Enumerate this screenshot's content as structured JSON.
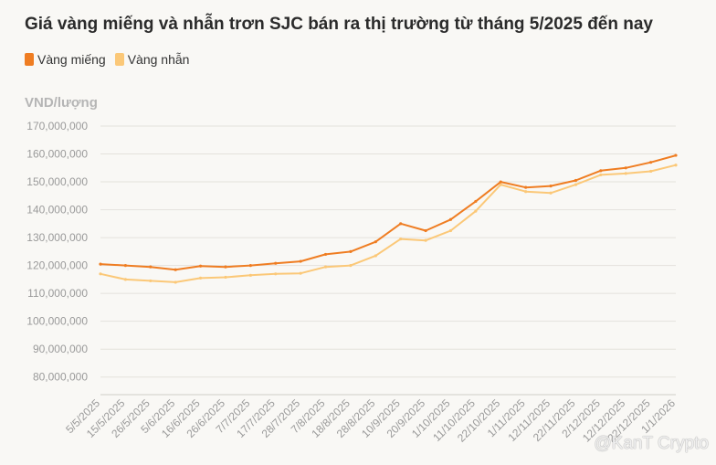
{
  "chart_data": {
    "type": "line",
    "title": "Giá vàng miếng và nhẫn trơn SJC bán ra thị trường từ tháng 5/2025 đến nay",
    "ylabel": "VND/lượng",
    "xlabel": "",
    "ylim": [
      75000000,
      170000000
    ],
    "yticks": [
      80000000,
      90000000,
      100000000,
      110000000,
      120000000,
      130000000,
      140000000,
      150000000,
      160000000,
      170000000
    ],
    "ytick_labels": [
      "80,000,000",
      "90,000,000",
      "100,000,000",
      "110,000,000",
      "120,000,000",
      "130,000,000",
      "140,000,000",
      "150,000,000",
      "160,000,000",
      "170,000,000"
    ],
    "categories": [
      "5/5/2025",
      "15/5/2025",
      "26/5/2025",
      "5/6/2025",
      "16/6/2025",
      "26/6/2025",
      "7/7/2025",
      "17/7/2025",
      "28/7/2025",
      "7/8/2025",
      "18/8/2025",
      "28/8/2025",
      "10/9/2025",
      "20/9/2025",
      "1/10/2025",
      "11/10/2025",
      "22/10/2025",
      "1/11/2025",
      "12/11/2025",
      "22/11/2025",
      "2/12/2025",
      "12/12/2025",
      "22/12/2025",
      "1/1/2026"
    ],
    "series": [
      {
        "name": "Vàng miếng",
        "color": "#ef7d22",
        "values": [
          120500000,
          120000000,
          119500000,
          118500000,
          119800000,
          119500000,
          120000000,
          120800000,
          121500000,
          124000000,
          125000000,
          128500000,
          135000000,
          132500000,
          136500000,
          143000000,
          150000000,
          148000000,
          148500000,
          150500000,
          154000000,
          155000000,
          157000000,
          159500000
        ]
      },
      {
        "name": "Vàng nhẫn",
        "color": "#fbc878",
        "values": [
          117000000,
          115000000,
          114500000,
          114000000,
          115500000,
          115800000,
          116500000,
          117000000,
          117200000,
          119500000,
          120000000,
          123500000,
          129500000,
          129000000,
          132500000,
          139500000,
          149000000,
          146500000,
          146000000,
          149000000,
          152500000,
          153000000,
          153800000,
          156000000
        ]
      }
    ]
  },
  "legend": {
    "items": [
      {
        "label": "Vàng miếng",
        "color": "#ef7d22"
      },
      {
        "label": "Vàng nhẫn",
        "color": "#fbc878"
      }
    ]
  },
  "watermark": "@KanT Crypto"
}
